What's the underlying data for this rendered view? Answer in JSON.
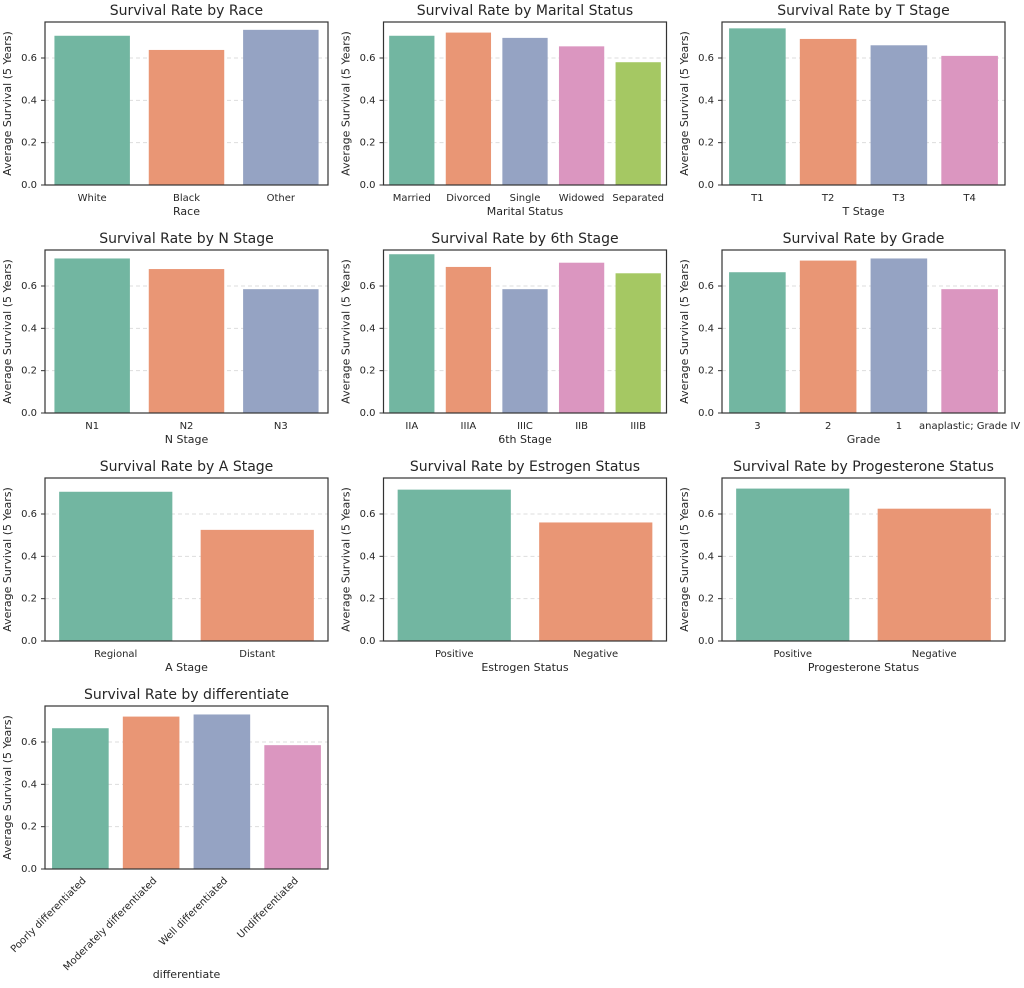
{
  "chart_data": [
    {
      "type": "bar",
      "title": "Survival Rate by Race",
      "xlabel": "Race",
      "ylabel": "Average Survival (5 Years)",
      "categories": [
        "White",
        "Black",
        "Other"
      ],
      "values": [
        0.705,
        0.638,
        0.733
      ],
      "colors": [
        "#72b6a1",
        "#e99675",
        "#95a3c3"
      ],
      "ylim": [
        0,
        0.77
      ],
      "yticks": [
        {
          "value": 0,
          "label": "0.0"
        },
        0.2,
        0.4,
        0.6
      ],
      "grid": true
    },
    {
      "type": "bar",
      "title": "Survival Rate by Marital Status",
      "xlabel": "Marital Status",
      "ylabel": "Average Survival (5 Years)",
      "categories": [
        "Married",
        "Divorced",
        "Single",
        "Widowed",
        "Separated"
      ],
      "values": [
        0.705,
        0.72,
        0.695,
        0.655,
        0.58
      ],
      "colors": [
        "#72b6a1",
        "#e99675",
        "#95a3c3",
        "#db96c0",
        "#a5c863"
      ],
      "ylim": [
        0,
        0.77
      ],
      "yticks": [
        {
          "value": 0,
          "label": "0.0"
        },
        0.2,
        0.4,
        0.6
      ],
      "grid": true
    },
    {
      "type": "bar",
      "title": "Survival Rate by T Stage",
      "xlabel": "T Stage",
      "ylabel": "Average Survival (5 Years)",
      "categories": [
        "T1",
        "T2",
        "T3",
        "T4"
      ],
      "values": [
        0.74,
        0.69,
        0.66,
        0.61
      ],
      "colors": [
        "#72b6a1",
        "#e99675",
        "#95a3c3",
        "#db96c0"
      ],
      "ylim": [
        0,
        0.77
      ],
      "yticks": [
        {
          "value": 0,
          "label": "0.0"
        },
        0.2,
        0.4,
        0.6
      ],
      "grid": true
    },
    {
      "type": "bar",
      "title": "Survival Rate by N Stage",
      "xlabel": "N Stage",
      "ylabel": "Average Survival (5 Years)",
      "categories": [
        "N1",
        "N2",
        "N3"
      ],
      "values": [
        0.73,
        0.68,
        0.585
      ],
      "colors": [
        "#72b6a1",
        "#e99675",
        "#95a3c3"
      ],
      "ylim": [
        0,
        0.77
      ],
      "yticks": [
        {
          "value": 0,
          "label": "0.0"
        },
        0.2,
        0.4,
        0.6
      ],
      "grid": true
    },
    {
      "type": "bar",
      "title": "Survival Rate by 6th Stage",
      "xlabel": "6th Stage",
      "ylabel": "Average Survival (5 Years)",
      "categories": [
        "IIA",
        "IIIA",
        "IIIC",
        "IIB",
        "IIIB"
      ],
      "values": [
        0.75,
        0.69,
        0.585,
        0.71,
        0.66
      ],
      "colors": [
        "#72b6a1",
        "#e99675",
        "#95a3c3",
        "#db96c0",
        "#a5c863"
      ],
      "ylim": [
        0,
        0.77
      ],
      "yticks": [
        {
          "value": 0,
          "label": "0.0"
        },
        0.2,
        0.4,
        0.6
      ],
      "grid": true
    },
    {
      "type": "bar",
      "title": "Survival Rate by Grade",
      "xlabel": "Grade",
      "ylabel": "Average Survival (5 Years)",
      "categories": [
        "3",
        "2",
        "1",
        "anaplastic; Grade IV"
      ],
      "values": [
        0.665,
        0.72,
        0.73,
        0.585
      ],
      "colors": [
        "#72b6a1",
        "#e99675",
        "#95a3c3",
        "#db96c0"
      ],
      "ylim": [
        0,
        0.77
      ],
      "yticks": [
        {
          "value": 0,
          "label": "0.0"
        },
        0.2,
        0.4,
        0.6
      ],
      "grid": true
    },
    {
      "type": "bar",
      "title": "Survival Rate by A Stage",
      "xlabel": "A Stage",
      "ylabel": "Average Survival (5 Years)",
      "categories": [
        "Regional",
        "Distant"
      ],
      "values": [
        0.705,
        0.525
      ],
      "colors": [
        "#72b6a1",
        "#e99675"
      ],
      "ylim": [
        0,
        0.77
      ],
      "yticks": [
        {
          "value": 0,
          "label": "0.0"
        },
        0.2,
        0.4,
        0.6
      ],
      "grid": true
    },
    {
      "type": "bar",
      "title": "Survival Rate by Estrogen Status",
      "xlabel": "Estrogen Status",
      "ylabel": "Average Survival (5 Years)",
      "categories": [
        "Positive",
        "Negative"
      ],
      "values": [
        0.715,
        0.56
      ],
      "colors": [
        "#72b6a1",
        "#e99675"
      ],
      "ylim": [
        0,
        0.77
      ],
      "yticks": [
        {
          "value": 0,
          "label": "0.0"
        },
        0.2,
        0.4,
        0.6
      ],
      "grid": true
    },
    {
      "type": "bar",
      "title": "Survival Rate by Progesterone Status",
      "xlabel": "Progesterone Status",
      "ylabel": "Average Survival (5 Years)",
      "categories": [
        "Positive",
        "Negative"
      ],
      "values": [
        0.72,
        0.625
      ],
      "colors": [
        "#72b6a1",
        "#e99675"
      ],
      "ylim": [
        0,
        0.77
      ],
      "yticks": [
        {
          "value": 0,
          "label": "0.0"
        },
        0.2,
        0.4,
        0.6
      ],
      "grid": true
    },
    {
      "type": "bar",
      "title": "Survival Rate by differentiate",
      "xlabel": "differentiate",
      "ylabel": "Average Survival (5 Years)",
      "categories": [
        "Poorly differentiated",
        "Moderately differentiated",
        "Well differentiated",
        "Undifferentiated"
      ],
      "values": [
        0.665,
        0.72,
        0.73,
        0.585
      ],
      "colors": [
        "#72b6a1",
        "#e99675",
        "#95a3c3",
        "#db96c0"
      ],
      "ylim": [
        0,
        0.77
      ],
      "yticks": [
        {
          "value": 0,
          "label": "0.0"
        },
        0.2,
        0.4,
        0.6
      ],
      "grid": true,
      "xtick_rotation": 45
    }
  ]
}
